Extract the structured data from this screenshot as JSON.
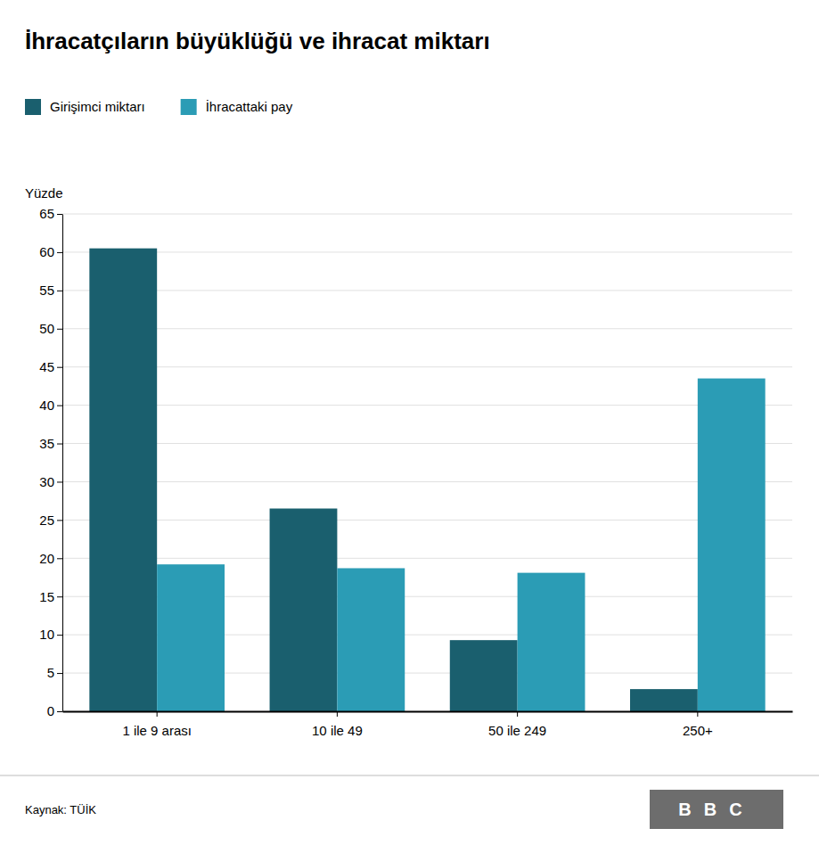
{
  "chart_data": {
    "type": "bar",
    "title": "İhracatçıların büyüklüğü ve ihracat miktarı",
    "y_label": "Yüzde",
    "categories": [
      "1 ile 9 arası",
      "10 ile 49",
      "50 ile 249",
      "250+"
    ],
    "series": [
      {
        "name": "Girişimci miktarı",
        "color": "#1a5f6e",
        "values": [
          60.5,
          26.5,
          9.3,
          2.9
        ]
      },
      {
        "name": "İhracattaki pay",
        "color": "#2b9cb5",
        "values": [
          19.2,
          18.7,
          18.1,
          43.5
        ]
      }
    ],
    "ylim": [
      0,
      65
    ],
    "yticks": [
      0,
      5,
      10,
      15,
      20,
      25,
      30,
      35,
      40,
      45,
      50,
      55,
      60,
      65
    ],
    "grid": true,
    "legend": "top-left",
    "source": "Kaynak: TÜİK",
    "logo": "BBC"
  }
}
